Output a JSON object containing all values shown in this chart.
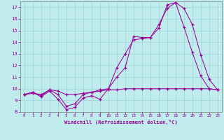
{
  "xlabel": "Windchill (Refroidissement éolien,°C)",
  "xlim": [
    -0.5,
    23.5
  ],
  "ylim": [
    8,
    17.5
  ],
  "yticks": [
    8,
    9,
    10,
    11,
    12,
    13,
    14,
    15,
    16,
    17
  ],
  "xticks": [
    0,
    1,
    2,
    3,
    4,
    5,
    6,
    7,
    8,
    9,
    10,
    11,
    12,
    13,
    14,
    15,
    16,
    17,
    18,
    19,
    20,
    21,
    22,
    23
  ],
  "bg_color": "#c0ecee",
  "grid_color": "#a0d8dc",
  "line_color": "#990099",
  "axis_label_color": "#990099",
  "spine_color": "#777777",
  "line1_x": [
    0,
    1,
    2,
    3,
    4,
    5,
    6,
    7,
    8,
    9,
    10,
    11,
    12,
    13,
    14,
    15,
    16,
    17,
    18,
    19,
    20,
    21,
    22,
    23
  ],
  "line1_y": [
    9.5,
    9.7,
    9.3,
    9.8,
    9.1,
    8.2,
    8.4,
    9.2,
    9.4,
    9.1,
    10.0,
    11.0,
    11.8,
    14.5,
    14.4,
    14.4,
    15.2,
    17.2,
    17.4,
    15.3,
    13.1,
    11.1,
    10.0,
    9.9
  ],
  "line2_x": [
    0,
    1,
    2,
    3,
    4,
    5,
    6,
    7,
    8,
    9,
    10,
    11,
    12,
    13,
    14,
    15,
    16,
    17,
    18,
    19,
    20,
    21,
    22,
    23
  ],
  "line2_y": [
    9.5,
    9.7,
    9.4,
    9.9,
    9.5,
    8.5,
    8.7,
    9.5,
    9.7,
    9.9,
    10.0,
    11.8,
    13.0,
    14.2,
    14.3,
    14.4,
    15.5,
    16.9,
    17.4,
    16.9,
    15.5,
    12.9,
    10.8,
    9.9
  ],
  "line3_x": [
    0,
    1,
    2,
    3,
    4,
    5,
    6,
    7,
    8,
    9,
    10,
    11,
    12,
    13,
    14,
    15,
    16,
    17,
    18,
    19,
    20,
    21,
    22,
    23
  ],
  "line3_y": [
    9.5,
    9.6,
    9.5,
    9.9,
    9.8,
    9.5,
    9.5,
    9.6,
    9.7,
    9.8,
    9.9,
    9.9,
    10.0,
    10.0,
    10.0,
    10.0,
    10.0,
    10.0,
    10.0,
    10.0,
    10.0,
    10.0,
    10.0,
    9.9
  ]
}
